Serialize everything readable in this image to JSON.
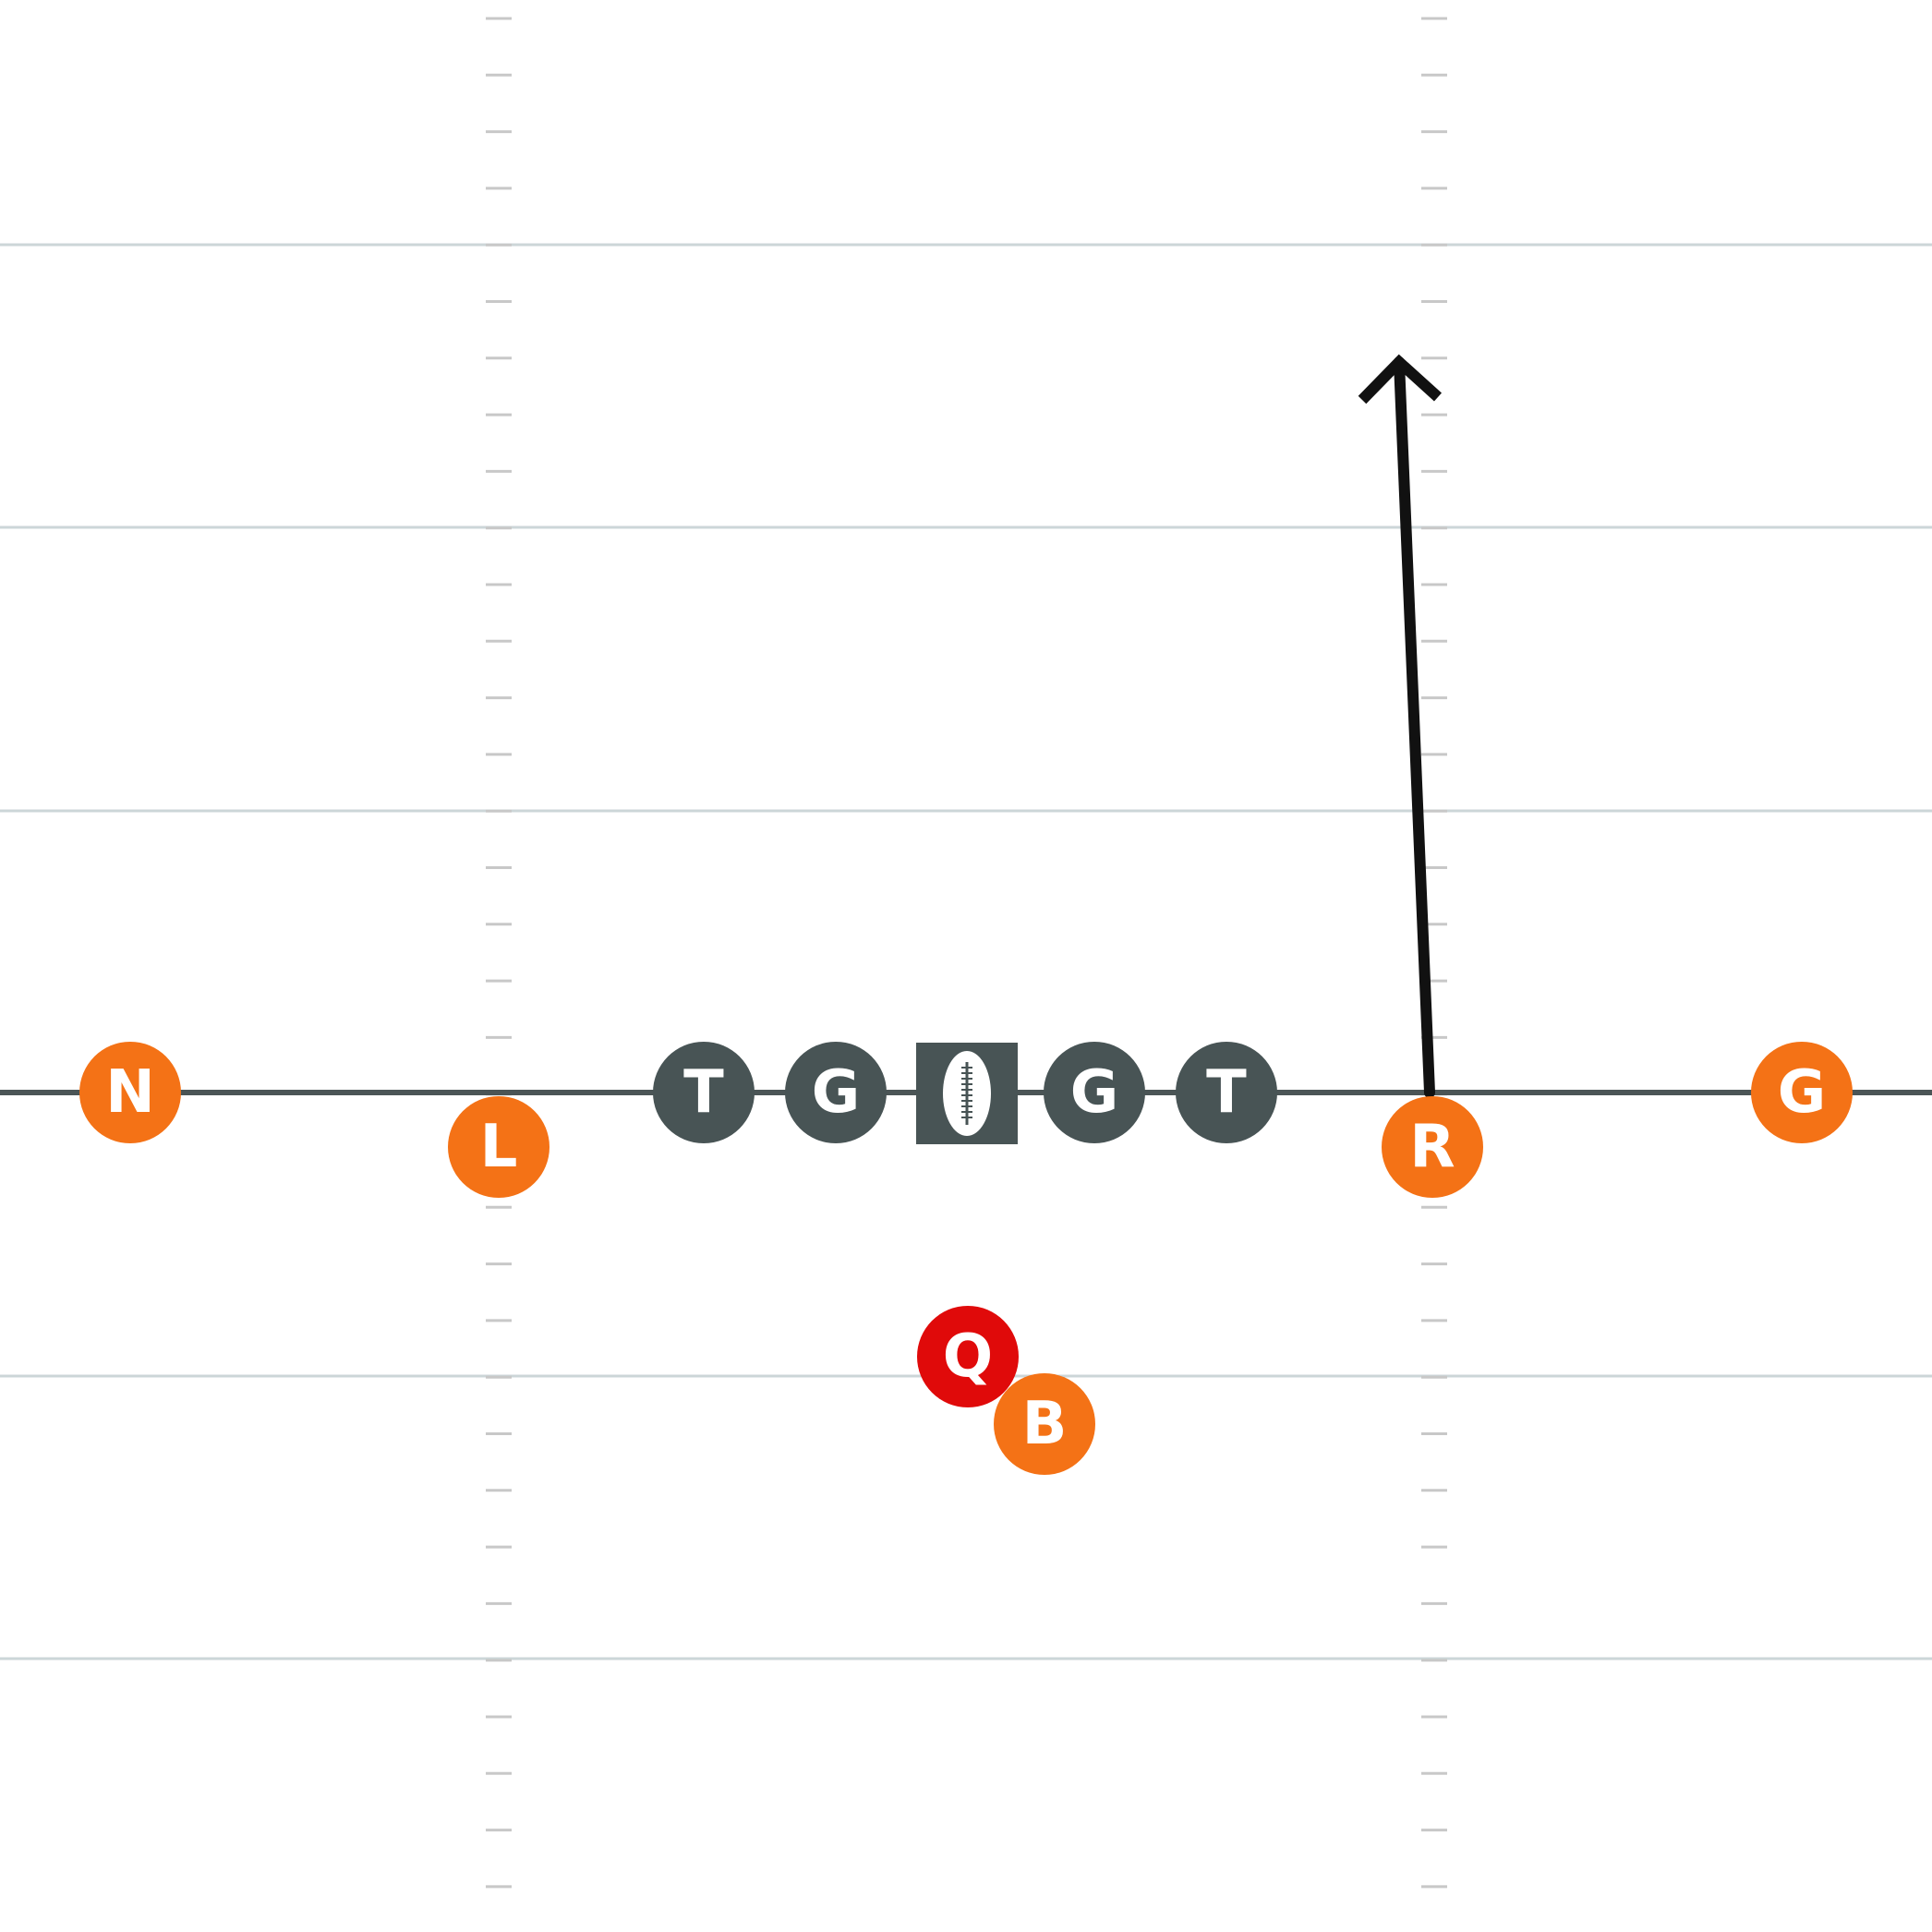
{
  "colors": {
    "background": "#ffffff",
    "yard_line": "#ccd6d8",
    "hash_mark": "#c8c8c8",
    "line_of_scrimmage": "#4b5556",
    "lineman": "#485455",
    "skill_player": "#f47216",
    "quarterback": "#e00a0a",
    "route": "#111111",
    "label": "#ffffff"
  },
  "players": [
    {
      "id": "n",
      "label": "N",
      "role": "skill_player"
    },
    {
      "id": "l",
      "label": "L",
      "role": "skill_player"
    },
    {
      "id": "lt",
      "label": "T",
      "role": "lineman"
    },
    {
      "id": "lg",
      "label": "G",
      "role": "lineman"
    },
    {
      "id": "rg",
      "label": "G",
      "role": "lineman"
    },
    {
      "id": "rt",
      "label": "T",
      "role": "lineman"
    },
    {
      "id": "r",
      "label": "R",
      "role": "skill_player"
    },
    {
      "id": "g",
      "label": "G",
      "role": "skill_player"
    },
    {
      "id": "q",
      "label": "Q",
      "role": "quarterback"
    },
    {
      "id": "b",
      "label": "B",
      "role": "skill_player"
    }
  ],
  "center": {
    "icon": "football-icon",
    "role": "lineman"
  },
  "routes": [
    {
      "player": "r",
      "type": "straight",
      "arrow": "arrowhead-icon"
    }
  ]
}
